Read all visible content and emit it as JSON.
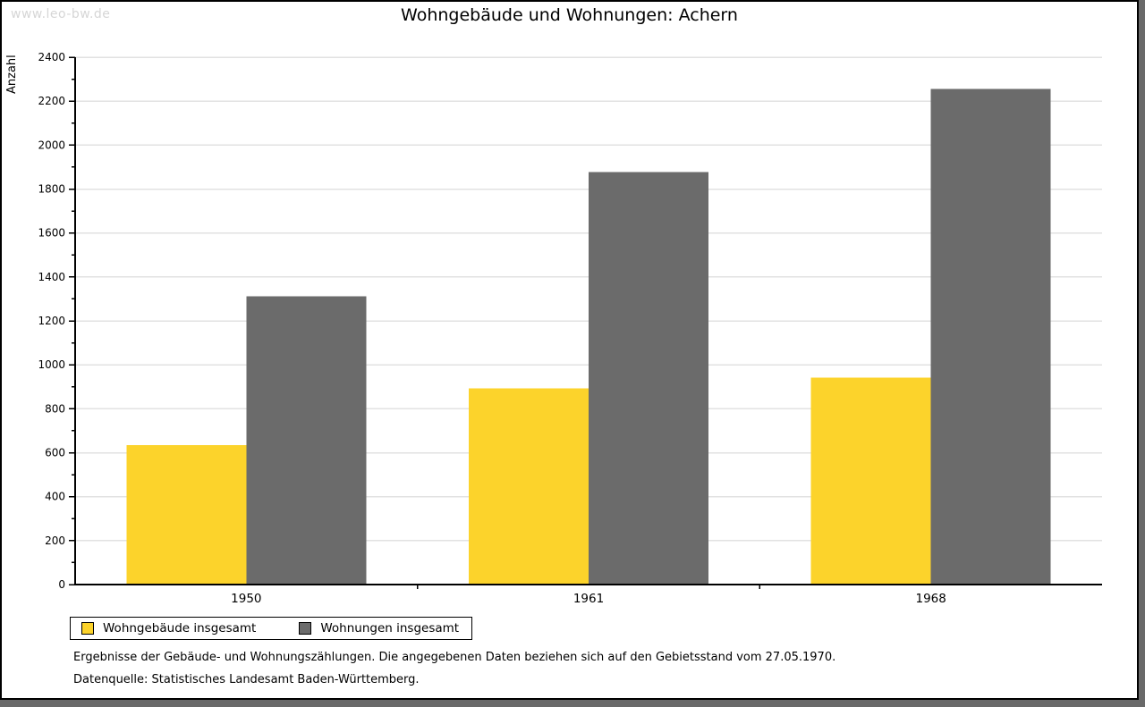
{
  "page": {
    "watermark": "www.leo-bw.de",
    "title": "Wohngebäude und Wohnungen: Achern",
    "footnotes": [
      "Ergebnisse der Gebäude- und Wohnungszählungen. Die angegebenen Daten beziehen sich auf den Gebietsstand vom 27.05.1970.",
      "Datenquelle: Statistisches Landesamt Baden-Württemberg."
    ]
  },
  "colors": {
    "bar_yellow": "#FCD32B",
    "bar_gray": "#6B6B6B",
    "gridline": "#E2E2E2",
    "axis": "#000000",
    "watermark": "#D6D6D6",
    "frame_shadow": "#696969"
  },
  "chart_data": {
    "type": "bar",
    "title": "Wohngebäude und Wohnungen: Achern",
    "xlabel": "",
    "ylabel": "Anzahl",
    "ylim": [
      0,
      2400
    ],
    "ytick_step": 200,
    "minor_tick_step": 100,
    "grid": true,
    "legend_position": "bottom-left",
    "categories": [
      "1950",
      "1961",
      "1968"
    ],
    "series": [
      {
        "name": "Wohngebäude insgesamt",
        "color": "#FCD32B",
        "values": [
          634,
          893,
          941
        ]
      },
      {
        "name": "Wohnungen insgesamt",
        "color": "#6B6B6B",
        "values": [
          1312,
          1878,
          2256
        ]
      }
    ]
  }
}
